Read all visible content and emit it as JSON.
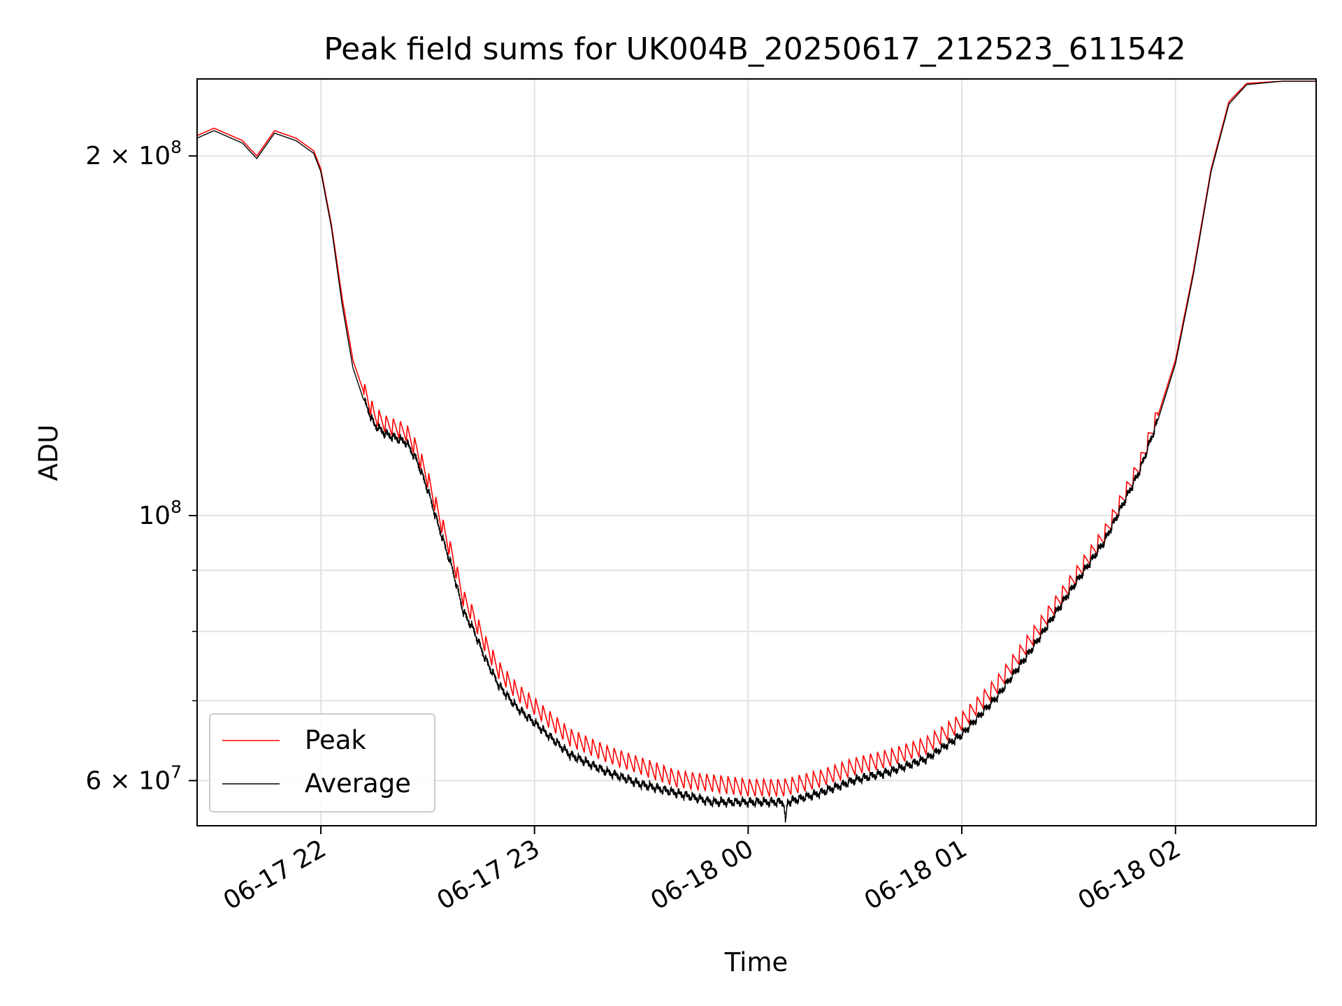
{
  "chart_data": {
    "type": "line",
    "title": "Peak field sums for UK004B_20250617_212523_611542",
    "xlabel": "Time",
    "ylabel": "ADU",
    "yscale": "log",
    "xlim": [
      "2025-06-17 21:25:15",
      "2025-06-18 02:39:30"
    ],
    "ylim": [
      55000000,
      232000000
    ],
    "x_ticks": [
      "06-17 22",
      "06-17 23",
      "06-18 00",
      "06-18 01",
      "06-18 02"
    ],
    "x_tick_rotation": 30,
    "y_major_ticks": [
      {
        "value": 60000000,
        "mantissa": "6",
        "base": "10",
        "exponent": "7"
      },
      {
        "value": 100000000,
        "mantissa": "",
        "base": "10",
        "exponent": "8"
      },
      {
        "value": 200000000,
        "mantissa": "2",
        "base": "10",
        "exponent": "8"
      }
    ],
    "y_minor_ticks": [
      70000000,
      80000000,
      90000000
    ],
    "grid": true,
    "legend_position": "lower-left",
    "series": [
      {
        "name": "Peak",
        "color": "#ff0000",
        "oscillation_percent": 3.5,
        "x": [
          "2025-06-17 21:25:15",
          "2025-06-17 21:30:00",
          "2025-06-17 21:38:00",
          "2025-06-17 21:42:00",
          "2025-06-17 21:47:00",
          "2025-06-17 21:53:00",
          "2025-06-17 21:58:00",
          "2025-06-17 22:00:00",
          "2025-06-17 22:03:00",
          "2025-06-17 22:06:00",
          "2025-06-17 22:09:00",
          "2025-06-17 22:12:00",
          "2025-06-17 22:15:00",
          "2025-06-17 22:18:00",
          "2025-06-17 22:21:00",
          "2025-06-17 22:24:00",
          "2025-06-17 22:27:00",
          "2025-06-17 22:30:00",
          "2025-06-17 22:33:00",
          "2025-06-17 22:37:00",
          "2025-06-17 22:40:00",
          "2025-06-17 22:43:00",
          "2025-06-17 22:46:00",
          "2025-06-17 22:50:00",
          "2025-06-17 22:55:00",
          "2025-06-17 23:00:00",
          "2025-06-17 23:10:00",
          "2025-06-17 23:20:00",
          "2025-06-17 23:30:00",
          "2025-06-17 23:40:00",
          "2025-06-17 23:50:00",
          "2025-06-18 00:00:00",
          "2025-06-18 00:10:00",
          "2025-06-18 00:20:00",
          "2025-06-18 00:30:00",
          "2025-06-18 00:40:00",
          "2025-06-18 00:50:00",
          "2025-06-18 01:00:00",
          "2025-06-18 01:10:00",
          "2025-06-18 01:20:00",
          "2025-06-18 01:30:00",
          "2025-06-18 01:40:00",
          "2025-06-18 01:50:00",
          "2025-06-18 01:55:00",
          "2025-06-18 02:00:00",
          "2025-06-18 02:05:00",
          "2025-06-18 02:10:00",
          "2025-06-18 02:15:00",
          "2025-06-18 02:20:00",
          "2025-06-18 02:30:00",
          "2025-06-18 02:39:30"
        ],
        "y": [
          208000000,
          211000000,
          206000000,
          200000000,
          210000000,
          207000000,
          202000000,
          195000000,
          175000000,
          152000000,
          135000000,
          127000000,
          121000000,
          119000000,
          118000000,
          117000000,
          113000000,
          107000000,
          100000000,
          92000000,
          85000000,
          82000000,
          78000000,
          74000000,
          71000000,
          69000000,
          65000000,
          63000000,
          61500000,
          60000000,
          59500000,
          59000000,
          59000000,
          60000000,
          61500000,
          62500000,
          64000000,
          67000000,
          72000000,
          79000000,
          87000000,
          96000000,
          110000000,
          121000000,
          135000000,
          160000000,
          195000000,
          222000000,
          230000000,
          231000000,
          231000000
        ]
      },
      {
        "name": "Average",
        "color": "#000000",
        "x": [
          "2025-06-17 21:25:15",
          "2025-06-17 21:30:00",
          "2025-06-17 21:38:00",
          "2025-06-17 21:42:00",
          "2025-06-17 21:47:00",
          "2025-06-17 21:53:00",
          "2025-06-17 21:58:00",
          "2025-06-17 22:00:00",
          "2025-06-17 22:03:00",
          "2025-06-17 22:06:00",
          "2025-06-17 22:09:00",
          "2025-06-17 22:12:00",
          "2025-06-17 22:15:00",
          "2025-06-17 22:18:00",
          "2025-06-17 22:21:00",
          "2025-06-17 22:24:00",
          "2025-06-17 22:27:00",
          "2025-06-17 22:30:00",
          "2025-06-17 22:33:00",
          "2025-06-17 22:37:00",
          "2025-06-17 22:40:00",
          "2025-06-17 22:43:00",
          "2025-06-17 22:46:00",
          "2025-06-17 22:50:00",
          "2025-06-17 22:55:00",
          "2025-06-17 23:00:00",
          "2025-06-17 23:10:00",
          "2025-06-17 23:20:00",
          "2025-06-17 23:30:00",
          "2025-06-17 23:40:00",
          "2025-06-17 23:50:00",
          "2025-06-18 00:00:00",
          "2025-06-18 00:10:00",
          "2025-06-18 00:10:30",
          "2025-06-18 00:11:00",
          "2025-06-18 00:20:00",
          "2025-06-18 00:30:00",
          "2025-06-18 00:40:00",
          "2025-06-18 00:50:00",
          "2025-06-18 01:00:00",
          "2025-06-18 01:10:00",
          "2025-06-18 01:20:00",
          "2025-06-18 01:30:00",
          "2025-06-18 01:40:00",
          "2025-06-18 01:50:00",
          "2025-06-18 01:55:00",
          "2025-06-18 02:00:00",
          "2025-06-18 02:05:00",
          "2025-06-18 02:10:00",
          "2025-06-18 02:15:00",
          "2025-06-18 02:20:00",
          "2025-06-18 02:30:00",
          "2025-06-18 02:39:30"
        ],
        "y": [
          207000000,
          210000000,
          205000000,
          199000000,
          209000000,
          206000000,
          201000000,
          194000000,
          174000000,
          150000000,
          133000000,
          125000000,
          119000000,
          117000000,
          116000000,
          115000000,
          111000000,
          105000000,
          98000000,
          90000000,
          83000000,
          80000000,
          76000000,
          72000000,
          69000000,
          67000000,
          63000000,
          61000000,
          59500000,
          58500000,
          57500000,
          57500000,
          57500000,
          55000000,
          57500000,
          58500000,
          60000000,
          61000000,
          62500000,
          65500000,
          70500000,
          77500000,
          86000000,
          95000000,
          109000000,
          120000000,
          134000000,
          159000000,
          194000000,
          221000000,
          229500000,
          231000000,
          231000000
        ]
      }
    ]
  }
}
